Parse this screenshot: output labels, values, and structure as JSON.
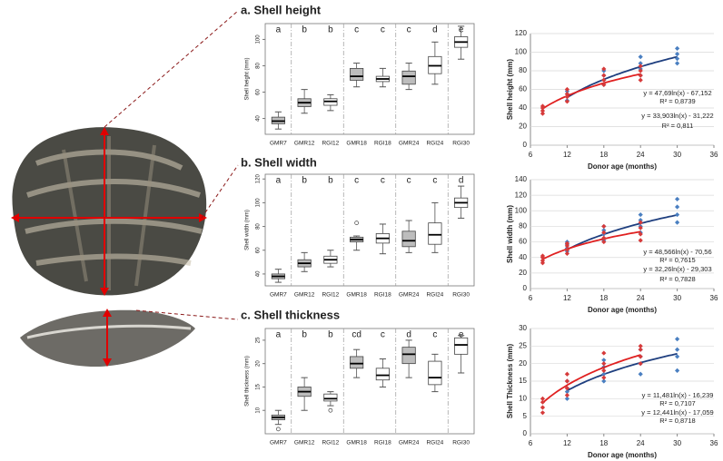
{
  "chart_data": [
    {
      "type": "box",
      "title": "a. Shell height",
      "y_label": "Shell height (mm)",
      "categories": [
        "GMR7",
        "GMR12",
        "RGI12",
        "GMR18",
        "RGI18",
        "GMR24",
        "RGI24",
        "RGI30"
      ],
      "group_labels": [
        "a",
        "b",
        "b",
        "c",
        "c",
        "c",
        "d",
        "e"
      ],
      "colors": [
        "#bdbdbd",
        "#bdbdbd",
        "#ffffff",
        "#bdbdbd",
        "#ffffff",
        "#bdbdbd",
        "#ffffff",
        "#ffffff"
      ],
      "boxes": [
        {
          "min": 32,
          "q1": 36,
          "median": 38,
          "q3": 41,
          "max": 45
        },
        {
          "min": 44,
          "q1": 49,
          "median": 52,
          "q3": 55,
          "max": 62
        },
        {
          "min": 46,
          "q1": 50,
          "median": 53,
          "q3": 55,
          "max": 58
        },
        {
          "min": 64,
          "q1": 69,
          "median": 72,
          "q3": 78,
          "max": 82
        },
        {
          "min": 64,
          "q1": 68,
          "median": 70,
          "q3": 72,
          "max": 78
        },
        {
          "min": 62,
          "q1": 66,
          "median": 72,
          "q3": 76,
          "max": 82
        },
        {
          "min": 66,
          "q1": 74,
          "median": 80,
          "q3": 87,
          "max": 98
        },
        {
          "min": 85,
          "q1": 94,
          "median": 98,
          "q3": 102,
          "max": 110
        }
      ],
      "ylim": [
        28,
        112
      ],
      "yticks": [
        40,
        60,
        80,
        100
      ]
    },
    {
      "type": "scatter",
      "x_label": "Donor age (months)",
      "y_label": "Shell height (mm)",
      "xlim": [
        6,
        36
      ],
      "xticks": [
        6,
        12,
        18,
        24,
        30,
        36
      ],
      "ylim": [
        0,
        120
      ],
      "yticks": [
        0,
        20,
        40,
        60,
        80,
        100,
        120
      ],
      "series": [
        {
          "color": "#4a7fc1",
          "line_color": "#1f3f7f",
          "x": [
            12,
            12,
            12,
            12,
            18,
            18,
            18,
            18,
            24,
            24,
            24,
            24,
            30,
            30,
            30,
            30
          ],
          "values": [
            48,
            52,
            55,
            58,
            65,
            70,
            75,
            80,
            75,
            82,
            88,
            95,
            88,
            93,
            98,
            104
          ],
          "fit": [
            47.69,
            -67.152
          ],
          "fit_label": "y = 47,69ln(x) - 67,152",
          "r2_label": "R² = 0,8739"
        },
        {
          "color": "#d63a3a",
          "line_color": "#e02020",
          "x": [
            8,
            8,
            8,
            8,
            12,
            12,
            12,
            12,
            18,
            18,
            18,
            18,
            24,
            24,
            24,
            24
          ],
          "values": [
            34,
            37,
            40,
            42,
            47,
            52,
            55,
            60,
            65,
            70,
            75,
            82,
            70,
            75,
            80,
            85
          ],
          "fit": [
            33.903,
            -31.222
          ],
          "fit_label": "y = 33,903ln(x) - 31,222",
          "r2_label": "R² = 0,811"
        }
      ]
    },
    {
      "type": "box",
      "title": "b. Shell width",
      "y_label": "Shell width (mm)",
      "categories": [
        "GMR7",
        "GMR12",
        "RGI12",
        "GMR18",
        "RGI18",
        "GMR24",
        "RGI24",
        "RGI30"
      ],
      "group_labels": [
        "a",
        "b",
        "b",
        "c",
        "c",
        "c",
        "c",
        "d"
      ],
      "colors": [
        "#bdbdbd",
        "#bdbdbd",
        "#ffffff",
        "#bdbdbd",
        "#ffffff",
        "#bdbdbd",
        "#ffffff",
        "#ffffff"
      ],
      "boxes": [
        {
          "min": 33,
          "q1": 36,
          "median": 38,
          "q3": 40,
          "max": 44
        },
        {
          "min": 42,
          "q1": 46,
          "median": 49,
          "q3": 52,
          "max": 58
        },
        {
          "min": 46,
          "q1": 49,
          "median": 52,
          "q3": 55,
          "max": 60
        },
        {
          "min": 60,
          "q1": 67,
          "median": 69,
          "q3": 71,
          "max": 72
        },
        {
          "min": 57,
          "q1": 66,
          "median": 70,
          "q3": 74,
          "max": 82
        },
        {
          "min": 58,
          "q1": 63,
          "median": 68,
          "q3": 76,
          "max": 85
        },
        {
          "min": 58,
          "q1": 65,
          "median": 73,
          "q3": 83,
          "max": 100
        },
        {
          "min": 87,
          "q1": 96,
          "median": 100,
          "q3": 104,
          "max": 114
        }
      ],
      "outliers": [
        [],
        [],
        [],
        [
          83
        ],
        [],
        [],
        [],
        []
      ],
      "ylim": [
        30,
        124
      ],
      "yticks": [
        40,
        60,
        80,
        100,
        120
      ]
    },
    {
      "type": "scatter",
      "x_label": "Donor age (months)",
      "y_label": "Shell width (mm)",
      "xlim": [
        6,
        36
      ],
      "xticks": [
        6,
        12,
        18,
        24,
        30,
        36
      ],
      "ylim": [
        0,
        140
      ],
      "yticks": [
        0,
        20,
        40,
        60,
        80,
        100,
        120,
        140
      ],
      "series": [
        {
          "color": "#4a7fc1",
          "line_color": "#1f3f7f",
          "x": [
            12,
            12,
            12,
            12,
            18,
            18,
            18,
            18,
            24,
            24,
            24,
            24,
            30,
            30,
            30,
            30
          ],
          "values": [
            48,
            52,
            57,
            60,
            62,
            70,
            75,
            80,
            72,
            80,
            88,
            95,
            85,
            95,
            105,
            115
          ],
          "fit": [
            48.566,
            -70.56
          ],
          "fit_label": "y = 48,566ln(x) - 70,56",
          "r2_label": "R² = 0,7615"
        },
        {
          "color": "#d63a3a",
          "line_color": "#e02020",
          "x": [
            8,
            8,
            8,
            8,
            12,
            12,
            12,
            12,
            18,
            18,
            18,
            18,
            24,
            24,
            24,
            24
          ],
          "values": [
            33,
            36,
            40,
            42,
            45,
            50,
            55,
            58,
            60,
            65,
            72,
            80,
            62,
            70,
            78,
            85
          ],
          "fit": [
            32.26,
            -29.303
          ],
          "fit_label": "y = 32,26ln(x) - 29,303",
          "r2_label": "R² = 0,7828"
        }
      ]
    },
    {
      "type": "box",
      "title": "c. Shell thickness",
      "y_label": "Shell thickness (mm)",
      "categories": [
        "GMR7",
        "GMR12",
        "RGI12",
        "GMR18",
        "RGI18",
        "GMR24",
        "RGI24",
        "RGI30"
      ],
      "group_labels": [
        "a",
        "b",
        "b",
        "cd",
        "c",
        "d",
        "c",
        "e"
      ],
      "colors": [
        "#bdbdbd",
        "#bdbdbd",
        "#ffffff",
        "#bdbdbd",
        "#ffffff",
        "#bdbdbd",
        "#ffffff",
        "#ffffff"
      ],
      "boxes": [
        {
          "min": 7,
          "q1": 8,
          "median": 8.5,
          "q3": 9,
          "max": 10
        },
        {
          "min": 10,
          "q1": 13,
          "median": 14,
          "q3": 15,
          "max": 17
        },
        {
          "min": 11,
          "q1": 12,
          "median": 12.5,
          "q3": 13.5,
          "max": 14
        },
        {
          "min": 17,
          "q1": 19,
          "median": 20,
          "q3": 21.5,
          "max": 23
        },
        {
          "min": 15,
          "q1": 16.5,
          "median": 17.5,
          "q3": 19,
          "max": 21
        },
        {
          "min": 17,
          "q1": 20,
          "median": 22,
          "q3": 23.5,
          "max": 25
        },
        {
          "min": 14,
          "q1": 15.5,
          "median": 17,
          "q3": 20.5,
          "max": 22
        },
        {
          "min": 18,
          "q1": 22,
          "median": 24,
          "q3": 25.5,
          "max": 26
        }
      ],
      "outliers": [
        [
          6
        ],
        [],
        [
          10
        ],
        [],
        [],
        [],
        [],
        []
      ],
      "ylim": [
        5,
        27.5
      ],
      "yticks": [
        10,
        15,
        20,
        25
      ]
    },
    {
      "type": "scatter",
      "x_label": "Donor age (months)",
      "y_label": "Shell Thickness (mm)",
      "xlim": [
        6,
        36
      ],
      "xticks": [
        6,
        12,
        18,
        24,
        30,
        36
      ],
      "ylim": [
        0,
        30
      ],
      "yticks": [
        0,
        5,
        10,
        15,
        20,
        25,
        30
      ],
      "series": [
        {
          "color": "#4a7fc1",
          "line_color": "#1f3f7f",
          "x": [
            12,
            12,
            12,
            12,
            18,
            18,
            18,
            18,
            24,
            24,
            24,
            24,
            30,
            30,
            30,
            30
          ],
          "values": [
            10,
            12,
            13,
            15,
            15,
            17,
            19,
            21,
            17,
            20,
            22,
            24,
            18,
            22,
            24,
            27
          ],
          "fit": [
            11.481,
            -16.239
          ],
          "fit_label": "y = 11,481ln(x) - 16,239",
          "r2_label": "R² = 0,7107"
        },
        {
          "color": "#d63a3a",
          "line_color": "#e02020",
          "x": [
            8,
            8,
            8,
            8,
            12,
            12,
            12,
            12,
            18,
            18,
            18,
            18,
            24,
            24,
            24,
            24
          ],
          "values": [
            6,
            7.5,
            9,
            10,
            11,
            13,
            15,
            17,
            16,
            18,
            20,
            23,
            20,
            22,
            24,
            25
          ],
          "fit": [
            12.441,
            -17.059
          ],
          "fit_label": "y = 12,441ln(x) - 17,059",
          "r2_label": "R² = 0,8718"
        }
      ]
    }
  ]
}
